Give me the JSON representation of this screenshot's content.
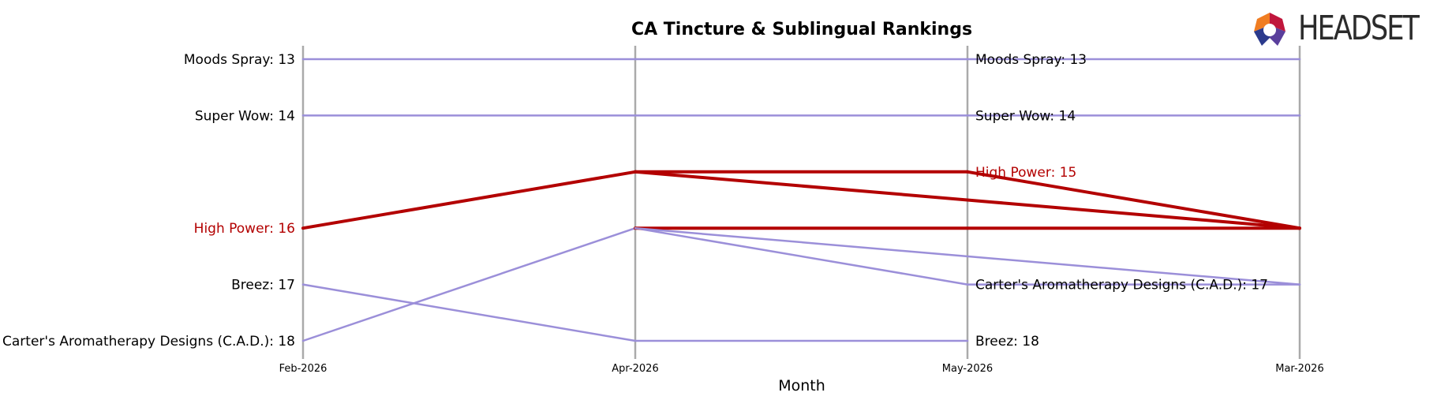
{
  "chart_data": {
    "type": "line",
    "title": "CA Tincture & Sublingual Rankings",
    "xlabel": "Month",
    "x": [
      "Feb-2026",
      "Apr-2026",
      "May-2026",
      "Mar-2026"
    ],
    "y_rank_range": [
      13,
      18
    ],
    "grid": false,
    "highlight_color": "#b30000",
    "default_color": "#9b8fd9",
    "series": [
      {
        "name": "Moods Spray",
        "ranks": [
          13,
          13,
          13,
          13
        ],
        "highlight": false
      },
      {
        "name": "Super Wow",
        "ranks": [
          14,
          14,
          14,
          14
        ],
        "highlight": false
      },
      {
        "name": "High Power",
        "ranks": [
          16,
          15,
          15,
          16
        ],
        "highlight": true
      },
      {
        "name": "Breez",
        "ranks": [
          17,
          18,
          18,
          null
        ],
        "highlight": false
      },
      {
        "name": "Carter's Aromatherapy Designs (C.A.D.)",
        "ranks": [
          18,
          16,
          17,
          17
        ],
        "highlight": false
      }
    ],
    "extra_segments": [
      {
        "series": "High Power",
        "from": [
          1,
          16
        ],
        "to": [
          3,
          16
        ]
      },
      {
        "series": "High Power",
        "from": [
          1,
          15
        ],
        "to": [
          3,
          16
        ]
      },
      {
        "series": "Carter's Aromatherapy Designs (C.A.D.)",
        "from": [
          1,
          16
        ],
        "to": [
          3,
          17
        ]
      }
    ],
    "left_labels": [
      {
        "text": "Moods Spray: 13",
        "rank": 13,
        "highlight": false
      },
      {
        "text": "Super Wow: 14",
        "rank": 14,
        "highlight": false
      },
      {
        "text": "High Power: 16",
        "rank": 16,
        "highlight": true
      },
      {
        "text": "Breez: 17",
        "rank": 17,
        "highlight": false
      },
      {
        "text": "Carter's Aromatherapy Designs (C.A.D.): 18",
        "rank": 18,
        "highlight": false
      }
    ],
    "right_labels": [
      {
        "text": "Moods Spray: 13",
        "rank": 13,
        "highlight": false
      },
      {
        "text": "Super Wow: 14",
        "rank": 14,
        "highlight": false
      },
      {
        "text": "High Power: 15",
        "rank": 15,
        "highlight": true
      },
      {
        "text": "Carter's Aromatherapy Designs (C.A.D.): 17",
        "rank": 17,
        "highlight": false
      },
      {
        "text": "Breez: 18",
        "rank": 18,
        "highlight": false
      }
    ]
  },
  "logo": {
    "text": "HEADSET",
    "icon": "headset-logo-icon"
  }
}
